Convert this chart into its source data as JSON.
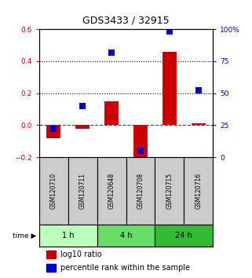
{
  "title": "GDS3433 / 32915",
  "samples": [
    "GSM120710",
    "GSM120711",
    "GSM120648",
    "GSM120708",
    "GSM120715",
    "GSM120716"
  ],
  "log10_ratio": [
    -0.08,
    -0.02,
    0.15,
    -0.21,
    0.46,
    0.01
  ],
  "percentile_rank": [
    22,
    40,
    82,
    5,
    98,
    52
  ],
  "left_ylim": [
    -0.2,
    0.6
  ],
  "right_ylim": [
    0,
    100
  ],
  "left_yticks": [
    -0.2,
    0.0,
    0.2,
    0.4,
    0.6
  ],
  "right_yticks": [
    0,
    25,
    50,
    75,
    100
  ],
  "right_yticklabels": [
    "0",
    "25",
    "50",
    "75",
    "100%"
  ],
  "dotted_lines": [
    0.2,
    0.4
  ],
  "dashed_zero": 0.0,
  "bar_color": "#cc0000",
  "dot_color": "#0000cc",
  "time_groups": [
    {
      "label": "1 h",
      "indices": [
        0,
        1
      ],
      "color": "#bbffbb"
    },
    {
      "label": "4 h",
      "indices": [
        2,
        3
      ],
      "color": "#66dd66"
    },
    {
      "label": "24 h",
      "indices": [
        4,
        5
      ],
      "color": "#33bb33"
    }
  ],
  "bar_width": 0.5,
  "dot_size": 28,
  "background_color": "#ffffff",
  "sample_box_color": "#cccccc",
  "legend_log10_label": "log10 ratio",
  "legend_percentile_label": "percentile rank within the sample"
}
